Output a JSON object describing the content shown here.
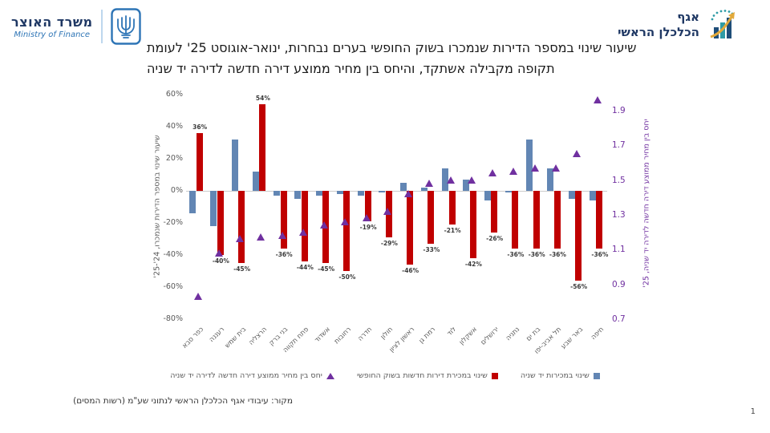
{
  "header": {
    "ministry_logo": {
      "title_he": "משרד האוצר",
      "title_en": "Ministry of Finance"
    },
    "division_logo": {
      "line1": "אגף",
      "line2": "הכלכלן הראשי"
    }
  },
  "title_line1": "שיעור שינוי במספר הדירות שנמכרו בשוק החופשי בערים נבחרות, ינואר-אוגוסט 25' לעומת",
  "title_line2": "תקופה מקבילה אשתקד, והיחס בין מחיר ממוצע דירה חדשה לדירה יד שניה",
  "chart_data": {
    "type": "bar",
    "subtype": "dual-axis bars + triangle markers",
    "grid": false,
    "legend_position": "bottom",
    "categories": [
      "כפר סבא",
      "רעננה",
      "בית שמש",
      "הרצליה",
      "בני ברק",
      "פתח תקווה",
      "אשדוד",
      "רחובות",
      "חדרה",
      "חולון",
      "ראשון לציון",
      "רמת גן",
      "לוד",
      "אשקלון",
      "ירושלים",
      "נתניה",
      "בת ים",
      "תל אביב-יפו",
      "באר שבע",
      "חיפה"
    ],
    "series": [
      {
        "name": "שינוי במכירות יד שניה",
        "type": "bar",
        "axis": "left",
        "color": "#6286B4",
        "values": [
          -14,
          -22,
          32,
          12,
          -3,
          -5,
          -3,
          -2,
          -3,
          -1,
          5,
          2,
          14,
          7,
          -6,
          -1,
          32,
          14,
          -5,
          -6
        ]
      },
      {
        "name": "שינוי במכירת דירות חדשות בשוק החופשי",
        "type": "bar",
        "axis": "left",
        "color": "#C00000",
        "values": [
          36,
          -40,
          -45,
          54,
          -36,
          -44,
          -45,
          -50,
          -19,
          -29,
          -46,
          -33,
          -21,
          -42,
          -26,
          -36,
          -36,
          -36,
          -56,
          -36
        ],
        "labels": [
          "36%",
          "-40%",
          "-45%",
          "54%",
          "-36%",
          "-44%",
          "-45%",
          "-50%",
          "-19%",
          "-29%",
          "-46%",
          "-33%",
          "-21%",
          "-42%",
          "-26%",
          "-36%",
          "-36%",
          "-36%",
          "-56%",
          "-36%"
        ]
      },
      {
        "name": "יחס בין מחיר ממוצע דירה חדשה לדירה יד שניה",
        "type": "scatter",
        "marker": "triangle-up",
        "axis": "right",
        "color": "#7030A0",
        "values": [
          0.83,
          1.08,
          1.16,
          1.17,
          1.18,
          1.2,
          1.24,
          1.26,
          1.28,
          1.32,
          1.42,
          1.48,
          1.5,
          1.5,
          1.54,
          1.55,
          1.57,
          1.57,
          1.65,
          1.96
        ]
      }
    ],
    "left_axis": {
      "title": "שיעור שינוי במספר הדירות שנמכרו, 24'-25'",
      "min": -80,
      "max": 60,
      "step": 20,
      "format": "percent",
      "ticks": [
        "60%",
        "40%",
        "20%",
        "0%",
        "-20%",
        "-40%",
        "-60%",
        "-80%"
      ]
    },
    "right_axis": {
      "title": "יחס בין מחיר ממוצע דירה חדשה לדירה יד שניה, 25'",
      "min": 0.7,
      "max": 1.9,
      "step": 0.2,
      "ticks": [
        "1.9",
        "1.7",
        "1.5",
        "1.3",
        "1.1",
        "0.9",
        "0.7"
      ]
    }
  },
  "legend": {
    "items": [
      {
        "label": "שינוי במכירות יד שניה",
        "marker": "blue-square",
        "color": "#6286B4"
      },
      {
        "label": "שינוי במכירת דירות חדשות בשוק החופשי",
        "marker": "red-square",
        "color": "#C00000"
      },
      {
        "label": "יחס בין מחיר ממוצע דירה חדשה לדירה יד שניה",
        "marker": "purple-triangle",
        "color": "#7030A0"
      }
    ]
  },
  "source": "מקור: עיבודי אגף הכלכלן הראשי לנתוני שע\"מ (רשות המסים)",
  "page_number": "1",
  "colors": {
    "secondhand_bar": "#6286B4",
    "new_bar": "#C00000",
    "ratio_marker": "#7030A0",
    "axis_text": "#595959",
    "brand_navy": "#1F3864",
    "brand_blue": "#2E75B6"
  }
}
